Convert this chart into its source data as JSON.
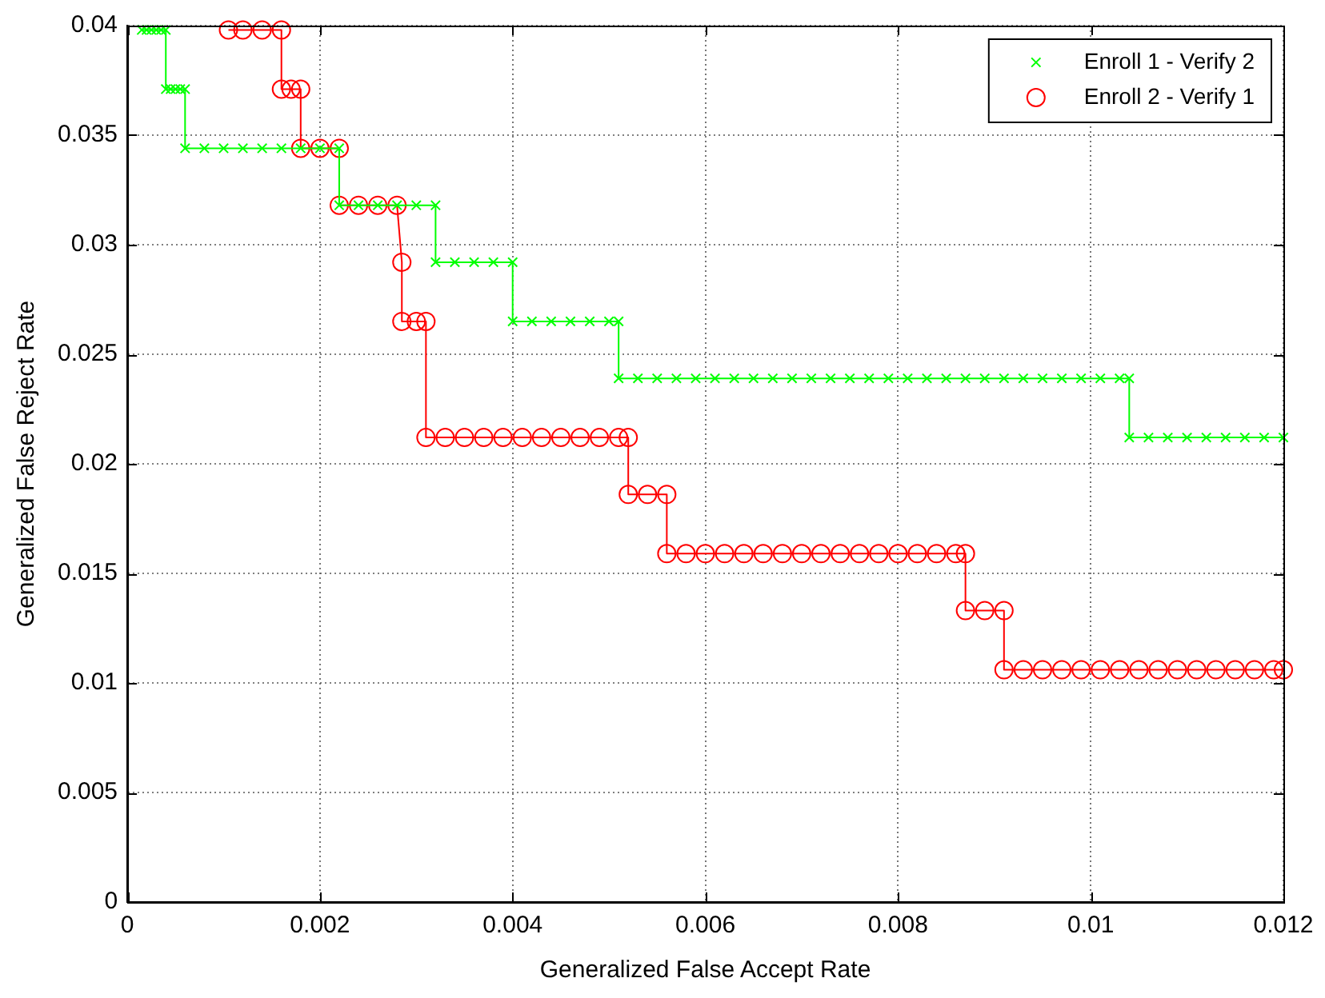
{
  "chart_data": {
    "type": "line",
    "xlabel": "Generalized False Accept Rate",
    "ylabel": "Generalized False Reject Rate",
    "xlim": [
      0,
      0.012
    ],
    "xticks": [
      0,
      0.002,
      0.004,
      0.006,
      0.008,
      0.01,
      0.012
    ],
    "ylim": [
      0,
      0.04
    ],
    "yticks": [
      0,
      0.005,
      0.01,
      0.015,
      0.02,
      0.025,
      0.03,
      0.035,
      0.04
    ],
    "grid": true,
    "legend": "top right",
    "line_style": "solid",
    "series": [
      {
        "name": "Enroll 1 - Verify 2",
        "color": "#00ff00",
        "marker": "cross",
        "x": [
          0.00015,
          0.0002,
          0.00025,
          0.0003,
          0.00035,
          0.0004,
          0.0004,
          0.00045,
          0.0005,
          0.00055,
          0.0006,
          0.0006,
          0.0008,
          0.001,
          0.0012,
          0.0014,
          0.0016,
          0.0018,
          0.002,
          0.0022,
          0.0022,
          0.0024,
          0.0026,
          0.0028,
          0.003,
          0.0032,
          0.0032,
          0.0034,
          0.0036,
          0.0038,
          0.004,
          0.004,
          0.0042,
          0.0044,
          0.0046,
          0.0048,
          0.005,
          0.0051,
          0.0051,
          0.0053,
          0.0055,
          0.0057,
          0.0059,
          0.0061,
          0.0063,
          0.0065,
          0.0067,
          0.0069,
          0.0071,
          0.0073,
          0.0075,
          0.0077,
          0.0079,
          0.0081,
          0.0083,
          0.0085,
          0.0087,
          0.0089,
          0.0091,
          0.0093,
          0.0095,
          0.0097,
          0.0099,
          0.0101,
          0.0103,
          0.0104,
          0.0104,
          0.0106,
          0.0108,
          0.011,
          0.0112,
          0.0114,
          0.0116,
          0.0118,
          0.012
        ],
        "values": [
          0.0398,
          0.0398,
          0.0398,
          0.0398,
          0.0398,
          0.0398,
          0.0371,
          0.0371,
          0.0371,
          0.0371,
          0.0371,
          0.0344,
          0.0344,
          0.0344,
          0.0344,
          0.0344,
          0.0344,
          0.0344,
          0.0344,
          0.0344,
          0.0318,
          0.0318,
          0.0318,
          0.0318,
          0.0318,
          0.0318,
          0.0292,
          0.0292,
          0.0292,
          0.0292,
          0.0292,
          0.0265,
          0.0265,
          0.0265,
          0.0265,
          0.0265,
          0.0265,
          0.0265,
          0.0239,
          0.0239,
          0.0239,
          0.0239,
          0.0239,
          0.0239,
          0.0239,
          0.0239,
          0.0239,
          0.0239,
          0.0239,
          0.0239,
          0.0239,
          0.0239,
          0.0239,
          0.0239,
          0.0239,
          0.0239,
          0.0239,
          0.0239,
          0.0239,
          0.0239,
          0.0239,
          0.0239,
          0.0239,
          0.0239,
          0.0239,
          0.0239,
          0.0212,
          0.0212,
          0.0212,
          0.0212,
          0.0212,
          0.0212,
          0.0212,
          0.0212,
          0.0212
        ]
      },
      {
        "name": "Enroll 2 - Verify 1",
        "color": "#ff0000",
        "marker": "circle",
        "x": [
          0.00105,
          0.0012,
          0.0014,
          0.0016,
          0.0016,
          0.0017,
          0.0018,
          0.0018,
          0.002,
          0.0022,
          0.0022,
          0.0024,
          0.0026,
          0.0028,
          0.00285,
          0.00285,
          0.003,
          0.0031,
          0.0031,
          0.0033,
          0.0035,
          0.0037,
          0.0039,
          0.0041,
          0.0043,
          0.0045,
          0.0047,
          0.0049,
          0.0051,
          0.0052,
          0.0052,
          0.0054,
          0.0056,
          0.0056,
          0.0058,
          0.006,
          0.0062,
          0.0064,
          0.0066,
          0.0068,
          0.007,
          0.0072,
          0.0074,
          0.0076,
          0.0078,
          0.008,
          0.0082,
          0.0084,
          0.0086,
          0.0087,
          0.0087,
          0.0089,
          0.0091,
          0.0091,
          0.0093,
          0.0095,
          0.0097,
          0.0099,
          0.0101,
          0.0103,
          0.0105,
          0.0107,
          0.0109,
          0.0111,
          0.0113,
          0.0115,
          0.0117,
          0.0119,
          0.012
        ],
        "values": [
          0.0398,
          0.0398,
          0.0398,
          0.0398,
          0.0371,
          0.0371,
          0.0371,
          0.0344,
          0.0344,
          0.0344,
          0.0318,
          0.0318,
          0.0318,
          0.0318,
          0.0292,
          0.0265,
          0.0265,
          0.0265,
          0.0212,
          0.0212,
          0.0212,
          0.0212,
          0.0212,
          0.0212,
          0.0212,
          0.0212,
          0.0212,
          0.0212,
          0.0212,
          0.0212,
          0.0186,
          0.0186,
          0.0186,
          0.0159,
          0.0159,
          0.0159,
          0.0159,
          0.0159,
          0.0159,
          0.0159,
          0.0159,
          0.0159,
          0.0159,
          0.0159,
          0.0159,
          0.0159,
          0.0159,
          0.0159,
          0.0159,
          0.0159,
          0.0133,
          0.0133,
          0.0133,
          0.0106,
          0.0106,
          0.0106,
          0.0106,
          0.0106,
          0.0106,
          0.0106,
          0.0106,
          0.0106,
          0.0106,
          0.0106,
          0.0106,
          0.0106,
          0.0106,
          0.0106,
          0.0106
        ]
      }
    ]
  }
}
